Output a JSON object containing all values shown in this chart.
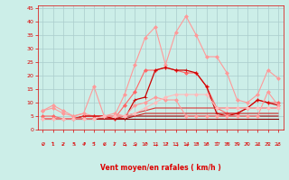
{
  "x": [
    0,
    1,
    2,
    3,
    4,
    5,
    6,
    7,
    8,
    9,
    10,
    11,
    12,
    13,
    14,
    15,
    16,
    17,
    18,
    19,
    20,
    21,
    22,
    23
  ],
  "series": [
    {
      "color": "#ff9999",
      "lw": 0.8,
      "marker": "D",
      "ms": 2.0,
      "values": [
        7,
        9,
        7,
        5,
        6,
        5,
        5,
        5,
        13,
        24,
        34,
        38,
        24,
        36,
        42,
        35,
        27,
        27,
        21,
        11,
        10,
        13,
        22,
        19
      ]
    },
    {
      "color": "#ff6666",
      "lw": 0.8,
      "marker": "D",
      "ms": 2.0,
      "values": [
        5,
        5,
        4,
        4,
        5,
        5,
        5,
        4,
        9,
        14,
        22,
        22,
        23,
        22,
        21,
        21,
        16,
        8,
        6,
        6,
        8,
        11,
        10,
        10
      ]
    },
    {
      "color": "#cc0000",
      "lw": 0.9,
      "marker": "+",
      "ms": 3.0,
      "values": [
        4,
        4,
        4,
        4,
        5,
        5,
        5,
        4,
        4,
        11,
        12,
        22,
        23,
        22,
        22,
        21,
        16,
        6,
        5,
        6,
        8,
        11,
        10,
        9
      ]
    },
    {
      "color": "#880000",
      "lw": 0.8,
      "marker": null,
      "ms": 0,
      "values": [
        4,
        4,
        4,
        4,
        4,
        4,
        4,
        4,
        4,
        4,
        4,
        4,
        4,
        4,
        4,
        4,
        4,
        4,
        4,
        4,
        4,
        4,
        4,
        4
      ]
    },
    {
      "color": "#aa0000",
      "lw": 0.8,
      "marker": null,
      "ms": 0,
      "values": [
        4,
        4,
        4,
        4,
        4,
        4,
        4,
        4,
        4,
        5,
        5,
        5,
        5,
        5,
        5,
        5,
        5,
        5,
        5,
        5,
        5,
        5,
        5,
        5
      ]
    },
    {
      "color": "#cc2222",
      "lw": 0.8,
      "marker": null,
      "ms": 0,
      "values": [
        4,
        4,
        4,
        4,
        4,
        4,
        4,
        4,
        5,
        5,
        6,
        6,
        6,
        6,
        6,
        6,
        6,
        6,
        6,
        6,
        6,
        6,
        6,
        6
      ]
    },
    {
      "color": "#dd3333",
      "lw": 0.8,
      "marker": null,
      "ms": 0,
      "values": [
        4,
        4,
        4,
        4,
        5,
        5,
        5,
        5,
        5,
        6,
        7,
        8,
        8,
        8,
        8,
        8,
        8,
        8,
        8,
        8,
        8,
        8,
        8,
        8
      ]
    },
    {
      "color": "#ff9999",
      "lw": 0.8,
      "marker": "D",
      "ms": 2.0,
      "values": [
        7,
        8,
        6,
        5,
        6,
        16,
        5,
        6,
        5,
        9,
        10,
        12,
        11,
        11,
        5,
        5,
        5,
        5,
        5,
        5,
        5,
        5,
        14,
        9
      ]
    },
    {
      "color": "#ffbbbb",
      "lw": 0.8,
      "marker": "D",
      "ms": 2.0,
      "values": [
        4,
        4,
        4,
        4,
        4,
        4,
        5,
        5,
        5,
        6,
        8,
        10,
        12,
        13,
        13,
        13,
        13,
        8,
        8,
        8,
        8,
        8,
        8,
        8
      ]
    }
  ],
  "xlabel": "Vent moyen/en rafales ( km/h )",
  "xlim": [
    -0.5,
    23.5
  ],
  "ylim": [
    0,
    46
  ],
  "yticks": [
    0,
    5,
    10,
    15,
    20,
    25,
    30,
    35,
    40,
    45
  ],
  "xticks": [
    0,
    1,
    2,
    3,
    4,
    5,
    6,
    7,
    8,
    9,
    10,
    11,
    12,
    13,
    14,
    15,
    16,
    17,
    18,
    19,
    20,
    21,
    22,
    23
  ],
  "bg_color": "#cceee8",
  "grid_color": "#aacccc",
  "tick_color": "#dd0000",
  "label_color": "#dd0000",
  "arrow_chars": [
    "↙",
    "↑",
    "↙",
    "↖",
    "↗",
    "↑",
    "↙",
    "↓",
    "→",
    "→",
    "↗",
    "→",
    "↗",
    "→",
    "→",
    "↗",
    "↗",
    "↑",
    "↖",
    "↖",
    "↖",
    "↙",
    "↖",
    "↙"
  ]
}
